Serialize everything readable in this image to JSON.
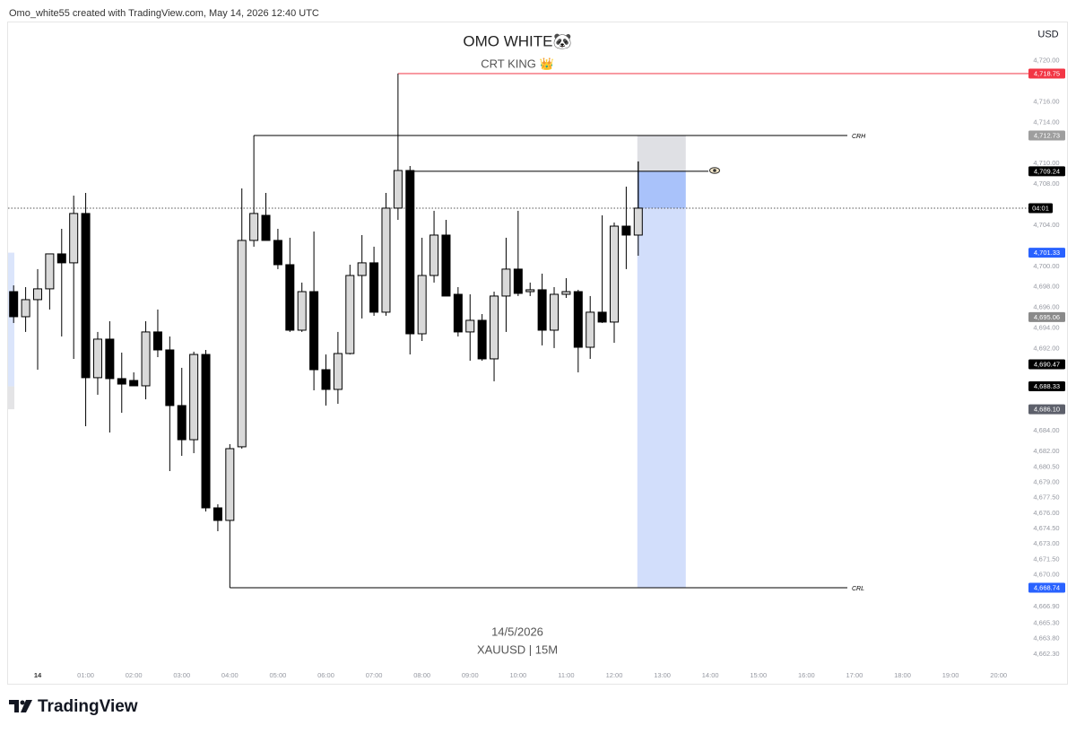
{
  "header": "Omo_white55 created with TradingView.com, May 14, 2026 12:40 UTC",
  "footer_brand": "TradingView",
  "chart_data": {
    "type": "candlestick",
    "title": "OMO WHITE🐼",
    "subtitle": "CRT KING 👑",
    "currency": "USD",
    "date_label": "14/5/2026",
    "symbol_label": "XAUUSD | 15M",
    "countdown_label": "04:01",
    "up_color": "#d9d9d9",
    "down_color": "#000000",
    "x": [
      "23:30",
      "23:45",
      "00:00",
      "00:15",
      "00:30",
      "00:45",
      "01:00",
      "01:15",
      "01:30",
      "01:45",
      "02:00",
      "02:15",
      "02:30",
      "02:45",
      "03:00",
      "03:15",
      "03:30",
      "03:45",
      "04:00",
      "04:15",
      "04:30",
      "04:45",
      "05:00",
      "05:15",
      "05:30",
      "05:45",
      "06:00",
      "06:15",
      "06:30",
      "06:45",
      "07:00",
      "07:15",
      "07:30",
      "07:45",
      "08:00",
      "08:15",
      "08:30",
      "08:45",
      "09:00",
      "09:15",
      "09:30",
      "09:45",
      "10:00",
      "10:15",
      "10:30",
      "10:45",
      "11:00",
      "11:15",
      "11:30",
      "11:45",
      "12:00",
      "12:15",
      "12:30"
    ],
    "open": [
      4697.54,
      4695.1,
      4696.76,
      4697.81,
      4701.21,
      4700.34,
      4705.14,
      4689.17,
      4692.92,
      4689.08,
      4688.9,
      4688.38,
      4693.62,
      4691.87,
      4686.46,
      4683.14,
      4691.43,
      4676.51,
      4675.29,
      4682.45,
      4702.52,
      4704.96,
      4702.52,
      4700.16,
      4693.79,
      4697.54,
      4689.95,
      4688.03,
      4691.52,
      4699.11,
      4700.34,
      4695.54,
      4705.66,
      4709.32,
      4693.44,
      4699.11,
      4703.04,
      4697.28,
      4693.62,
      4694.75,
      4691.0,
      4697.11,
      4699.73,
      4697.54,
      4697.72,
      4693.79,
      4697.28,
      4697.54,
      4692.13,
      4695.54,
      4694.58,
      4703.91,
      4703.04
    ],
    "high": [
      4698.15,
      4697.98,
      4699.73,
      4701.21,
      4703.65,
      4706.88,
      4707.14,
      4693.62,
      4694.66,
      4691.61,
      4689.69,
      4694.66,
      4695.8,
      4693.18,
      4690.13,
      4691.7,
      4691.87,
      4676.86,
      4682.71,
      4707.58,
      4707.14,
      4707.14,
      4703.65,
      4702.78,
      4698.42,
      4703.39,
      4691.43,
      4693.62,
      4700.16,
      4703.04,
      4701.91,
      4707.14,
      4709.76,
      4709.76,
      4702.78,
      4705.4,
      4704.52,
      4697.98,
      4697.28,
      4695.36,
      4697.54,
      4702.78,
      4705.4,
      4698.42,
      4699.29,
      4697.98,
      4698.85,
      4697.72,
      4697.11,
      4704.96,
      4704.26,
      4707.75,
      4710.2
    ],
    "low": [
      4694.49,
      4693.62,
      4689.95,
      4695.8,
      4693.18,
      4691.0,
      4684.45,
      4687.51,
      4683.84,
      4685.76,
      4688.38,
      4687.07,
      4691.17,
      4680.09,
      4681.57,
      4681.83,
      4676.16,
      4674.24,
      4668.74,
      4682.27,
      4701.91,
      4702.52,
      4699.73,
      4693.62,
      4693.62,
      4687.94,
      4686.46,
      4686.63,
      4691.43,
      4694.93,
      4695.19,
      4695.19,
      4704.52,
      4691.43,
      4692.74,
      4698.42,
      4697.11,
      4693.18,
      4690.82,
      4690.82,
      4688.82,
      4693.62,
      4697.11,
      4697.11,
      4692.31,
      4692.05,
      4696.93,
      4689.69,
      4691.0,
      4694.49,
      4692.57,
      4699.73,
      4701.03
    ],
    "close": [
      4695.1,
      4696.76,
      4697.81,
      4701.21,
      4700.34,
      4705.14,
      4689.17,
      4692.92,
      4689.08,
      4688.55,
      4688.38,
      4693.62,
      4691.87,
      4686.46,
      4683.14,
      4691.43,
      4676.51,
      4675.29,
      4682.27,
      4702.52,
      4705.14,
      4702.52,
      4700.16,
      4693.79,
      4697.54,
      4689.95,
      4688.03,
      4691.52,
      4699.11,
      4700.34,
      4695.54,
      4705.66,
      4709.32,
      4693.44,
      4699.11,
      4703.04,
      4697.11,
      4693.62,
      4694.75,
      4691.0,
      4697.11,
      4699.73,
      4697.37,
      4697.72,
      4693.79,
      4697.28,
      4697.54,
      4692.13,
      4695.54,
      4694.58,
      4703.91,
      4703.04,
      4705.66
    ],
    "time_axis": [
      "14",
      "01:00",
      "02:00",
      "03:00",
      "04:00",
      "05:00",
      "06:00",
      "07:00",
      "08:00",
      "09:00",
      "10:00",
      "11:00",
      "12:00",
      "13:00",
      "14:00",
      "15:00",
      "16:00",
      "17:00",
      "18:00",
      "19:00",
      "20:00"
    ],
    "ylim": [
      4659.58,
      4723.72
    ],
    "yticks": [
      {
        "value": 4720,
        "label": "4,720.00"
      },
      {
        "value": 4716,
        "label": "4,716.00"
      },
      {
        "value": 4714,
        "label": "4,714.00"
      },
      {
        "value": 4710,
        "label": "4,710.00"
      },
      {
        "value": 4708,
        "label": "4,708.00"
      },
      {
        "value": 4704,
        "label": "4,704.00"
      },
      {
        "value": 4700,
        "label": "4,700.00"
      },
      {
        "value": 4698,
        "label": "4,698.00"
      },
      {
        "value": 4696,
        "label": "4,696.00"
      },
      {
        "value": 4694,
        "label": "4,694.00"
      },
      {
        "value": 4692,
        "label": "4,692.00"
      },
      {
        "value": 4684,
        "label": "4,684.00"
      },
      {
        "value": 4682,
        "label": "4,682.00"
      },
      {
        "value": 4680.5,
        "label": "4,680.50"
      },
      {
        "value": 4679,
        "label": "4,679.00"
      },
      {
        "value": 4677.5,
        "label": "4,677.50"
      },
      {
        "value": 4676,
        "label": "4,676.00"
      },
      {
        "value": 4674.5,
        "label": "4,674.50"
      },
      {
        "value": 4673,
        "label": "4,673.00"
      },
      {
        "value": 4671.5,
        "label": "4,671.50"
      },
      {
        "value": 4670,
        "label": "4,670.00"
      },
      {
        "value": 4666.9,
        "label": "4,666.90"
      },
      {
        "value": 4665.3,
        "label": "4,665.30"
      },
      {
        "value": 4663.8,
        "label": "4,663.80"
      },
      {
        "value": 4662.3,
        "label": "4,662.30"
      }
    ],
    "price_labels": [
      {
        "value": 4718.75,
        "label": "4,718.75",
        "color": "#f23645"
      },
      {
        "value": 4712.73,
        "label": "4,712.73",
        "color": "#9e9e9e"
      },
      {
        "value": 4709.24,
        "label": "4,709.24",
        "color": "#000000"
      },
      {
        "value": 4701.33,
        "label": "4,701.33",
        "color": "#2962ff"
      },
      {
        "value": 4695.06,
        "label": "4,695.06",
        "color": "#8a8a8a"
      },
      {
        "value": 4690.47,
        "label": "4,690.47",
        "color": "#000000"
      },
      {
        "value": 4688.33,
        "label": "4,688.33",
        "color": "#000000"
      },
      {
        "value": 4686.1,
        "label": "4,686.10",
        "color": "#5d606b"
      },
      {
        "value": 4668.74,
        "label": "4,668.74",
        "color": "#2962ff"
      }
    ],
    "levels": [
      {
        "name": "CRH",
        "value": 4712.73
      },
      {
        "name": "CRL",
        "value": 4668.74
      }
    ]
  }
}
